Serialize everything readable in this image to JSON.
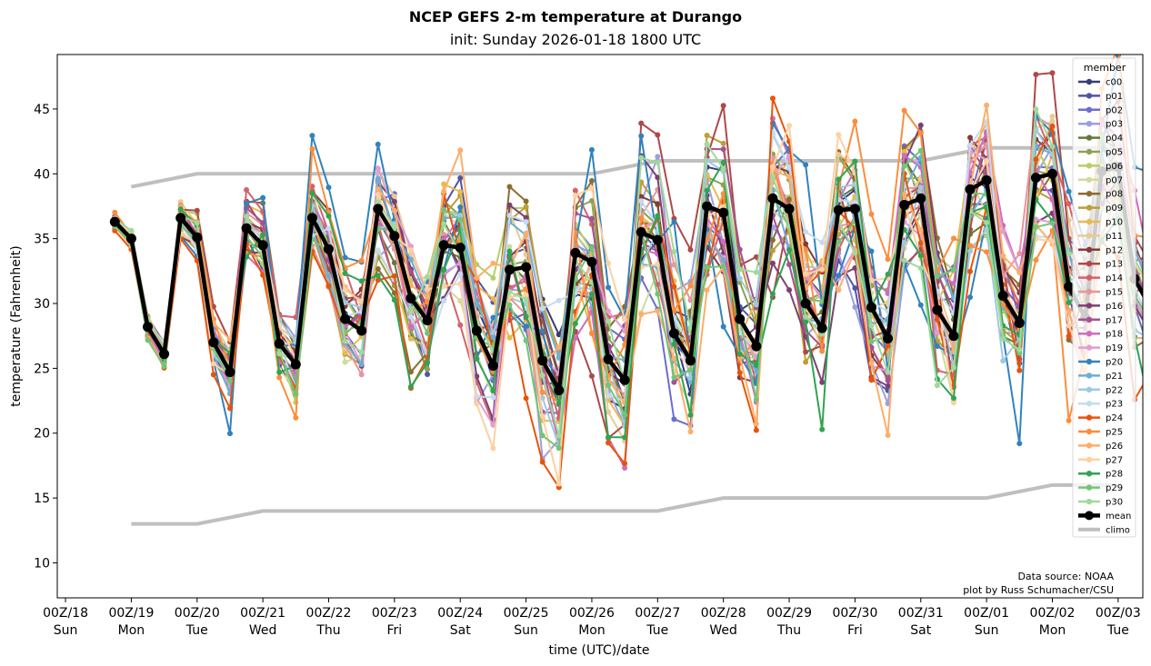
{
  "chart_data": {
    "type": "line",
    "title": "NCEP GEFS 2-m temperature at Durango",
    "subtitle": "init: Sunday 2026-01-18 1800 UTC",
    "xlabel": "time (UTC)/date",
    "ylabel": "temperature (Fahrenheit)",
    "ylim": [
      7.3,
      49.2
    ],
    "yticks": [
      10,
      15,
      20,
      25,
      30,
      35,
      40,
      45
    ],
    "xlim_hours_from_00Z18": [
      -3,
      393
    ],
    "xticks": [
      {
        "hour": 0,
        "line1": "00Z/18",
        "line2": "Sun"
      },
      {
        "hour": 24,
        "line1": "00Z/19",
        "line2": "Mon"
      },
      {
        "hour": 48,
        "line1": "00Z/20",
        "line2": "Tue"
      },
      {
        "hour": 72,
        "line1": "00Z/21",
        "line2": "Wed"
      },
      {
        "hour": 96,
        "line1": "00Z/22",
        "line2": "Thu"
      },
      {
        "hour": 120,
        "line1": "00Z/23",
        "line2": "Fri"
      },
      {
        "hour": 144,
        "line1": "00Z/24",
        "line2": "Sat"
      },
      {
        "hour": 168,
        "line1": "00Z/25",
        "line2": "Sun"
      },
      {
        "hour": 192,
        "line1": "00Z/26",
        "line2": "Mon"
      },
      {
        "hour": 216,
        "line1": "00Z/27",
        "line2": "Tue"
      },
      {
        "hour": 240,
        "line1": "00Z/28",
        "line2": "Wed"
      },
      {
        "hour": 264,
        "line1": "00Z/29",
        "line2": "Thu"
      },
      {
        "hour": 288,
        "line1": "00Z/30",
        "line2": "Fri"
      },
      {
        "hour": 312,
        "line1": "00Z/31",
        "line2": "Sat"
      },
      {
        "hour": 336,
        "line1": "00Z/01",
        "line2": "Sun"
      },
      {
        "hour": 360,
        "line1": "00Z/02",
        "line2": "Mon"
      },
      {
        "hour": 384,
        "line1": "00Z/03",
        "line2": "Tue"
      },
      {
        "hour": 408,
        "line1": "00Z/04",
        "line2": "Wed"
      }
    ],
    "x_start_hour": 18,
    "x_step_hours": 6,
    "grid": false,
    "legend": {
      "title": "member",
      "placement": "right"
    },
    "credits": [
      "Data source: NOAA",
      "plot by Russ Schumacher/CSU"
    ],
    "mean": {
      "name": "mean",
      "color": "#000000",
      "values": [
        36.3,
        35.0,
        28.2,
        26.1,
        36.6,
        35.1,
        27.0,
        24.7,
        35.8,
        34.5,
        26.9,
        25.3,
        36.6,
        34.2,
        28.8,
        27.9,
        37.3,
        35.2,
        30.4,
        28.7,
        34.5,
        34.3,
        27.9,
        25.2,
        32.6,
        32.8,
        25.6,
        23.3,
        33.9,
        33.2,
        25.7,
        24.1,
        35.5,
        34.9,
        27.7,
        25.6,
        37.5,
        37.0,
        28.8,
        26.7,
        38.1,
        37.3,
        30.0,
        28.1,
        37.2,
        37.3,
        29.7,
        27.3,
        37.6,
        38.1,
        29.5,
        27.5,
        38.8,
        39.5,
        30.6,
        28.5,
        39.7,
        40.0,
        31.3,
        28.9,
        40.2,
        40.5,
        31.9,
        29.6
      ]
    },
    "climo": {
      "name": "climo",
      "color": "#bfbfbf",
      "high": {
        "hours": [
          24,
          48,
          72,
          96,
          120,
          144,
          168,
          192,
          216,
          240,
          264,
          288,
          312,
          336,
          360,
          384
        ],
        "values": [
          39,
          40,
          40,
          40,
          40,
          40,
          40,
          40,
          41,
          41,
          41,
          41,
          41,
          42,
          42,
          42
        ]
      },
      "low": {
        "hours": [
          24,
          48,
          72,
          96,
          120,
          144,
          168,
          192,
          216,
          240,
          264,
          288,
          312,
          336,
          360,
          384
        ],
        "values": [
          13,
          13,
          14,
          14,
          14,
          14,
          14,
          14,
          14,
          15,
          15,
          15,
          15,
          15,
          16,
          16
        ]
      }
    },
    "members": [
      {
        "name": "c00",
        "color": "#393b79",
        "spread": 0.9,
        "phase": 1
      },
      {
        "name": "p01",
        "color": "#5254a3",
        "spread": 1.1,
        "phase": 2
      },
      {
        "name": "p02",
        "color": "#6b6ecf",
        "spread": 1.3,
        "phase": 3
      },
      {
        "name": "p03",
        "color": "#9c9ede",
        "spread": 1.6,
        "phase": 4
      },
      {
        "name": "p04",
        "color": "#637939",
        "spread": 0.8,
        "phase": 5
      },
      {
        "name": "p05",
        "color": "#8ca252",
        "spread": 1.0,
        "phase": 6
      },
      {
        "name": "p06",
        "color": "#b5cf6b",
        "spread": 1.4,
        "phase": 7
      },
      {
        "name": "p07",
        "color": "#cedb9c",
        "spread": 1.2,
        "phase": 8
      },
      {
        "name": "p08",
        "color": "#8c6d31",
        "spread": 1.5,
        "phase": 9
      },
      {
        "name": "p09",
        "color": "#bd9e39",
        "spread": 1.1,
        "phase": 10
      },
      {
        "name": "p10",
        "color": "#e7ba52",
        "spread": 1.3,
        "phase": 11
      },
      {
        "name": "p11",
        "color": "#e7cb94",
        "spread": 1.2,
        "phase": 12
      },
      {
        "name": "p12",
        "color": "#843c39",
        "spread": 1.0,
        "phase": 13
      },
      {
        "name": "p13",
        "color": "#ad494a",
        "spread": 1.8,
        "phase": 14
      },
      {
        "name": "p14",
        "color": "#d6616b",
        "spread": 1.4,
        "phase": 15
      },
      {
        "name": "p15",
        "color": "#e7969c",
        "spread": 1.1,
        "phase": 16
      },
      {
        "name": "p16",
        "color": "#7b4173",
        "spread": 1.2,
        "phase": 17
      },
      {
        "name": "p17",
        "color": "#a55194",
        "spread": 1.0,
        "phase": 18
      },
      {
        "name": "p18",
        "color": "#ce6dbd",
        "spread": 1.3,
        "phase": 19
      },
      {
        "name": "p19",
        "color": "#de9ed6",
        "spread": 1.1,
        "phase": 20
      },
      {
        "name": "p20",
        "color": "#3182bd",
        "spread": 2.6,
        "phase": 21
      },
      {
        "name": "p21",
        "color": "#6baed6",
        "spread": 1.0,
        "phase": 22
      },
      {
        "name": "p22",
        "color": "#9ecae1",
        "spread": 1.1,
        "phase": 23
      },
      {
        "name": "p23",
        "color": "#c6dbef",
        "spread": 1.3,
        "phase": 24
      },
      {
        "name": "p24",
        "color": "#e6550d",
        "spread": 1.9,
        "phase": 25
      },
      {
        "name": "p25",
        "color": "#fd8d3c",
        "spread": 2.0,
        "phase": 26
      },
      {
        "name": "p26",
        "color": "#fdae6b",
        "spread": 1.6,
        "phase": 27
      },
      {
        "name": "p27",
        "color": "#fdd0a2",
        "spread": 1.5,
        "phase": 28
      },
      {
        "name": "p28",
        "color": "#31a354",
        "spread": 2.0,
        "phase": 29
      },
      {
        "name": "p29",
        "color": "#74c476",
        "spread": 1.2,
        "phase": 30
      },
      {
        "name": "p30",
        "color": "#a1d99b",
        "spread": 1.4,
        "phase": 31
      }
    ]
  }
}
